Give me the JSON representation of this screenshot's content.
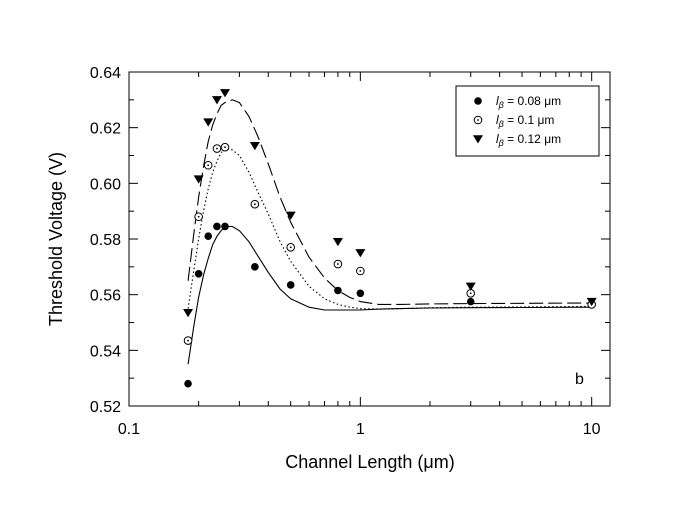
{
  "chart_data": {
    "type": "scatter",
    "title": "",
    "xlabel": "Channel Length (μm)",
    "ylabel": "Threshold Voltage (V)",
    "x_scale": "log",
    "xlim": [
      0.1,
      12
    ],
    "ylim": [
      0.52,
      0.64
    ],
    "x_ticks": [
      0.1,
      1,
      10
    ],
    "x_tick_labels": [
      "0.1",
      "1",
      "10"
    ],
    "y_ticks": [
      0.52,
      0.54,
      0.56,
      0.58,
      0.6,
      0.62,
      0.64
    ],
    "y_tick_labels": [
      "0.52",
      "0.54",
      "0.56",
      "0.58",
      "0.60",
      "0.62",
      "0.64"
    ],
    "grid": false,
    "legend_position": "top-right",
    "annotation": "b",
    "series": [
      {
        "name": "l_β = 0.08 μm",
        "legend_prefix": "l",
        "legend_sub": "β",
        "legend_suffix": " = 0.08 μm",
        "marker": "filled-circle",
        "line_style": "solid",
        "x": [
          0.18,
          0.2,
          0.22,
          0.24,
          0.26,
          0.35,
          0.5,
          0.8,
          1.0,
          3.0,
          10.0
        ],
        "y": [
          0.528,
          0.5675,
          0.581,
          0.5845,
          0.5845,
          0.57,
          0.5635,
          0.5615,
          0.5605,
          0.5575,
          0.5565
        ],
        "fit_x": [
          0.18,
          0.19,
          0.2,
          0.21,
          0.22,
          0.23,
          0.24,
          0.25,
          0.26,
          0.28,
          0.3,
          0.33,
          0.36,
          0.4,
          0.45,
          0.5,
          0.6,
          0.7,
          0.8,
          0.9,
          1.0,
          1.2,
          1.5,
          2.0,
          3.0,
          5.0,
          10.0
        ],
        "fit_y": [
          0.535,
          0.548,
          0.559,
          0.567,
          0.573,
          0.578,
          0.581,
          0.583,
          0.5845,
          0.5845,
          0.583,
          0.579,
          0.574,
          0.568,
          0.562,
          0.5585,
          0.5555,
          0.5545,
          0.5545,
          0.5545,
          0.5545,
          0.5548,
          0.555,
          0.5552,
          0.5553,
          0.5554,
          0.5555
        ]
      },
      {
        "name": "l_β = 0.1 μm",
        "legend_prefix": "l",
        "legend_sub": "β",
        "legend_suffix": " = 0.1 μm",
        "marker": "open-circle",
        "line_style": "dotted",
        "x": [
          0.18,
          0.2,
          0.22,
          0.24,
          0.26,
          0.35,
          0.5,
          0.8,
          1.0,
          3.0,
          10.0
        ],
        "y": [
          0.5435,
          0.588,
          0.6065,
          0.6125,
          0.613,
          0.5925,
          0.577,
          0.571,
          0.5685,
          0.5605,
          0.5565
        ],
        "fit_x": [
          0.18,
          0.19,
          0.2,
          0.21,
          0.22,
          0.23,
          0.24,
          0.25,
          0.26,
          0.28,
          0.3,
          0.33,
          0.36,
          0.4,
          0.45,
          0.5,
          0.6,
          0.7,
          0.8,
          0.9,
          1.0,
          1.2,
          1.5,
          2.0,
          3.0,
          5.0,
          10.0
        ],
        "fit_y": [
          0.555,
          0.568,
          0.58,
          0.59,
          0.598,
          0.604,
          0.608,
          0.611,
          0.6125,
          0.612,
          0.61,
          0.604,
          0.597,
          0.589,
          0.579,
          0.572,
          0.563,
          0.5585,
          0.5565,
          0.5555,
          0.555,
          0.5548,
          0.555,
          0.5553,
          0.5555,
          0.5556,
          0.5558
        ]
      },
      {
        "name": "l_β = 0.12 μm",
        "legend_prefix": "l",
        "legend_sub": "β",
        "legend_suffix": " = 0.12 μm",
        "marker": "filled-triangle-down",
        "line_style": "dashed",
        "x": [
          0.18,
          0.2,
          0.22,
          0.24,
          0.26,
          0.35,
          0.5,
          0.8,
          1.0,
          3.0,
          10.0
        ],
        "y": [
          0.5535,
          0.6015,
          0.622,
          0.63,
          0.6325,
          0.6135,
          0.5885,
          0.579,
          0.575,
          0.563,
          0.5575
        ],
        "fit_x": [
          0.18,
          0.19,
          0.2,
          0.21,
          0.22,
          0.23,
          0.24,
          0.25,
          0.26,
          0.28,
          0.3,
          0.33,
          0.36,
          0.4,
          0.45,
          0.5,
          0.6,
          0.7,
          0.8,
          0.9,
          1.0,
          1.2,
          1.5,
          2.0,
          3.0,
          5.0,
          10.0
        ],
        "fit_y": [
          0.565,
          0.581,
          0.595,
          0.606,
          0.615,
          0.621,
          0.625,
          0.628,
          0.629,
          0.63,
          0.629,
          0.624,
          0.617,
          0.607,
          0.595,
          0.586,
          0.5735,
          0.566,
          0.5615,
          0.559,
          0.5575,
          0.5565,
          0.5565,
          0.5567,
          0.5568,
          0.5569,
          0.557
        ]
      }
    ]
  }
}
